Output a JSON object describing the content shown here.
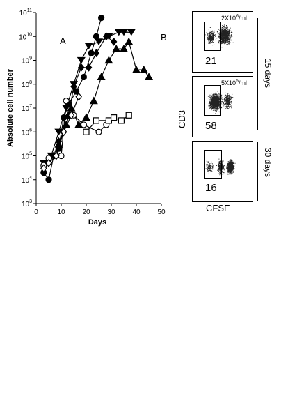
{
  "chart_data": [
    {
      "type": "line",
      "panel_label": "A",
      "xlabel": "Days",
      "ylabel": "Absolute cell number",
      "xlim": [
        0,
        50
      ],
      "ylim_log10": [
        3,
        11
      ],
      "y_scale": "log",
      "x_ticks": [
        "0",
        "10",
        "20",
        "30",
        "40",
        "50"
      ],
      "y_ticks": [
        {
          "base": "10",
          "exp": "3"
        },
        {
          "base": "10",
          "exp": "4"
        },
        {
          "base": "10",
          "exp": "5"
        },
        {
          "base": "10",
          "exp": "6"
        },
        {
          "base": "10",
          "exp": "7"
        },
        {
          "base": "10",
          "exp": "8"
        },
        {
          "base": "10",
          "exp": "9"
        },
        {
          "base": "10",
          "exp": "10"
        },
        {
          "base": "10",
          "exp": "11"
        }
      ],
      "series": [
        {
          "marker": "filled-circle",
          "points": [
            [
              3,
              20000.0
            ],
            [
              5,
              10000.0
            ],
            [
              7,
              100000.0
            ],
            [
              9,
              200000.0
            ],
            [
              11,
              4000000.0
            ],
            [
              13,
              15000000.0
            ],
            [
              16,
              50000000.0
            ],
            [
              19,
              200000000.0
            ],
            [
              22,
              2000000000.0
            ],
            [
              24,
              10000000000.0
            ],
            [
              26,
              60000000000.0
            ]
          ]
        },
        {
          "marker": "filled-down-triangle",
          "points": [
            [
              3,
              50000.0
            ],
            [
              6,
              100000.0
            ],
            [
              9,
              1000000.0
            ],
            [
              12,
              10000000.0
            ],
            [
              15,
              100000000.0
            ],
            [
              18,
              1000000000.0
            ],
            [
              21,
              4000000000.0
            ],
            [
              25,
              6000000000.0
            ],
            [
              29,
              10000000000.0
            ],
            [
              33,
              15000000000.0
            ],
            [
              35,
              15000000000.0
            ],
            [
              38,
              15000000000.0
            ]
          ]
        },
        {
          "marker": "filled-diamond",
          "points": [
            [
              5,
              50000.0
            ],
            [
              7,
              100000.0
            ],
            [
              9,
              400000.0
            ],
            [
              11,
              1000000.0
            ],
            [
              13,
              5000000.0
            ],
            [
              15,
              80000000.0
            ],
            [
              18,
              500000000.0
            ],
            [
              21,
              500000000.0
            ],
            [
              24,
              2000000000.0
            ],
            [
              28,
              10000000000.0
            ],
            [
              31,
              6000000000.0
            ]
          ]
        },
        {
          "marker": "filled-triangle",
          "points": [
            [
              9,
              300000.0
            ],
            [
              12,
              2000000.0
            ],
            [
              14,
              10000000.0
            ],
            [
              17,
              2000000.0
            ],
            [
              20,
              4000000.0
            ],
            [
              23,
              20000000.0
            ],
            [
              26,
              200000000.0
            ],
            [
              29,
              1000000000.0
            ],
            [
              32,
              3000000000.0
            ],
            [
              35,
              3000000000.0
            ],
            [
              37,
              6000000000.0
            ],
            [
              40,
              400000000.0
            ],
            [
              43,
              400000000.0
            ],
            [
              45,
              200000000.0
            ]
          ]
        },
        {
          "marker": "open-circle",
          "points": [
            [
              3,
              40000.0
            ],
            [
              5,
              80000.0
            ],
            [
              10,
              100000.0
            ],
            [
              12,
              20000000.0
            ],
            [
              15,
              5000000.0
            ],
            [
              19,
              2000000.0
            ],
            [
              25,
              1000000.0
            ],
            [
              28,
              2000000.0
            ]
          ]
        },
        {
          "marker": "open-diamond",
          "points": [
            [
              3,
              30000.0
            ],
            [
              5,
              50000.0
            ],
            [
              8,
              100000.0
            ],
            [
              11,
              1000000.0
            ],
            [
              14,
              5000000.0
            ],
            [
              17,
              30000000.0
            ]
          ]
        },
        {
          "marker": "open-square",
          "points": [
            [
              20,
              1000000.0
            ],
            [
              24,
              3000000.0
            ],
            [
              29,
              3000000.0
            ],
            [
              31,
              4000000.0
            ],
            [
              34,
              3000000.0
            ],
            [
              37,
              5000000.0
            ]
          ]
        }
      ]
    },
    {
      "type": "scatter",
      "panel_label": "B",
      "xlabel": "CFSE",
      "ylabel": "CD3",
      "panels": [
        {
          "percent": "21",
          "concentration": {
            "base": "2X10",
            "exp": "6",
            "unit": "/ml"
          }
        },
        {
          "percent": "58",
          "concentration": {
            "base": "5X10",
            "exp": "5",
            "unit": "/ml"
          }
        },
        {
          "percent": "16",
          "concentration": null
        }
      ],
      "time_labels": [
        "15 days",
        "30 days"
      ]
    }
  ]
}
